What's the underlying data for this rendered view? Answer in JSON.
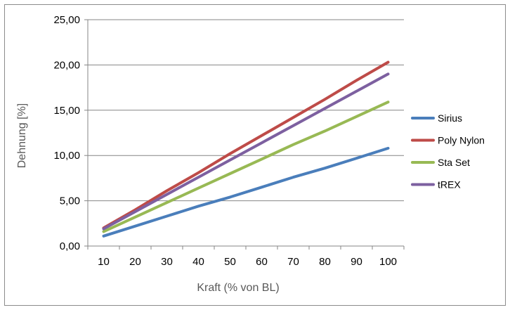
{
  "chart_data": {
    "type": "line",
    "title": "",
    "xlabel": "Kraft (% von BL)",
    "ylabel": "Dehnung [%]",
    "categories": [
      "10",
      "20",
      "30",
      "40",
      "50",
      "60",
      "70",
      "80",
      "90",
      "100"
    ],
    "ylim": [
      0,
      25
    ],
    "yticks": [
      "0,00",
      "5,00",
      "10,00",
      "15,00",
      "20,00",
      "25,00"
    ],
    "grid": "horizontal",
    "legend_position": "right",
    "series": [
      {
        "name": "Sirius",
        "color": "#4a7ebb",
        "values": [
          1.1,
          2.2,
          3.3,
          4.4,
          5.4,
          6.5,
          7.6,
          8.6,
          9.7,
          10.8
        ]
      },
      {
        "name": "Poly Nylon",
        "color": "#be4b48",
        "values": [
          2.0,
          4.0,
          6.1,
          8.1,
          10.2,
          12.2,
          14.2,
          16.2,
          18.3,
          20.3
        ]
      },
      {
        "name": "Sta Set",
        "color": "#98b954",
        "values": [
          1.6,
          3.2,
          4.8,
          6.4,
          8.0,
          9.6,
          11.2,
          12.7,
          14.3,
          15.9
        ]
      },
      {
        "name": "tREX",
        "color": "#7d60a0",
        "values": [
          1.9,
          3.8,
          5.7,
          7.6,
          9.5,
          11.4,
          13.3,
          15.2,
          17.1,
          19.0
        ]
      }
    ]
  }
}
